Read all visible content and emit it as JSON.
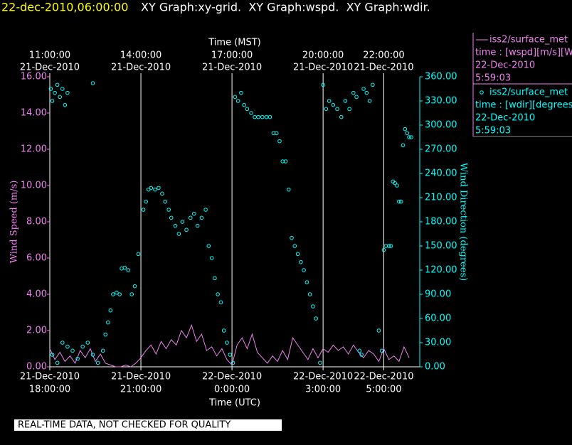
{
  "chart_data": {
    "type": "scatter",
    "timestamp": "22-dec-2010,06:00:00",
    "title": "XY Graph:xy-grid.  XY Graph:wspd.  XY Graph:wdir.",
    "xlabel": "Time (UTC)",
    "x2label": "Time (MST)",
    "ylabel": "Wind Speed (m/s)",
    "y2label": "Wind Direction (degrees)",
    "footer": "REAL-TIME DATA, NOT CHECKED FOR QUALITY",
    "grid": true,
    "xlim": [
      "2010-12-21T18:00",
      "2010-12-22T06:11"
    ],
    "xticks": [
      {
        "value": "2010-12-21T18:00",
        "label": [
          "21-Dec-2010",
          "18:00:00"
        ]
      },
      {
        "value": "2010-12-21T21:00",
        "label": [
          "21-Dec-2010",
          "21:00:00"
        ]
      },
      {
        "value": "2010-12-22T00:00",
        "label": [
          "22-Dec-2010",
          "0:00:00"
        ]
      },
      {
        "value": "2010-12-22T03:00",
        "label": [
          "22-Dec-2010",
          "3:00:00"
        ]
      },
      {
        "value": "2010-12-22T05:00",
        "label": [
          "22-Dec-2010",
          "5:00:00"
        ]
      }
    ],
    "x2lim": [
      "2010-12-21T11:00",
      "2010-12-21T23:11"
    ],
    "x2ticks": [
      {
        "value": "2010-12-21T11:00",
        "label": [
          "11:00:00",
          "21-Dec-2010"
        ]
      },
      {
        "value": "2010-12-21T14:00",
        "label": [
          "14:00:00",
          "21-Dec-2010"
        ]
      },
      {
        "value": "2010-12-21T17:00",
        "label": [
          "17:00:00",
          "21-Dec-2010"
        ]
      },
      {
        "value": "2010-12-21T20:00",
        "label": [
          "20:00:00",
          "21-Dec-2010"
        ]
      },
      {
        "value": "2010-12-21T22:00",
        "label": [
          "22:00:00",
          "21-Dec-2010"
        ]
      }
    ],
    "ylim": [
      0,
      16
    ],
    "yticks": [
      {
        "value": 0,
        "label": "0.00"
      },
      {
        "value": 2,
        "label": "2.00"
      },
      {
        "value": 4,
        "label": "4.00"
      },
      {
        "value": 6,
        "label": "6.00"
      },
      {
        "value": 8,
        "label": "8.00"
      },
      {
        "value": 10,
        "label": "10.00"
      },
      {
        "value": 12,
        "label": "12.00"
      },
      {
        "value": 14,
        "label": "14.00"
      },
      {
        "value": 16,
        "label": "16.00"
      }
    ],
    "y2lim": [
      0,
      360
    ],
    "y2ticks": [
      {
        "value": 0,
        "label": "0.00"
      },
      {
        "value": 30,
        "label": "30.00"
      },
      {
        "value": 60,
        "label": "60.00"
      },
      {
        "value": 90,
        "label": "90.00"
      },
      {
        "value": 120,
        "label": "120.00"
      },
      {
        "value": 150,
        "label": "150.00"
      },
      {
        "value": 180,
        "label": "180.00"
      },
      {
        "value": 210,
        "label": "210.00"
      },
      {
        "value": 240,
        "label": "240.00"
      },
      {
        "value": 270,
        "label": "270.00"
      },
      {
        "value": 300,
        "label": "300.00"
      },
      {
        "value": 330,
        "label": "330.00"
      },
      {
        "value": 360,
        "label": "360.00"
      }
    ],
    "series": [
      {
        "name": "iss2/surface_met",
        "color": "#ee82ee",
        "marker": "line",
        "detail": [
          "time : [wspd][m/s][Wind",
          "22-Dec-2010",
          "5:59:03"
        ],
        "x": [
          "2010-12-21T18:00",
          "2010-12-21T18:10",
          "2010-12-21T18:20",
          "2010-12-21T18:30",
          "2010-12-21T18:40",
          "2010-12-21T18:50",
          "2010-12-21T19:00",
          "2010-12-21T19:10",
          "2010-12-21T19:20",
          "2010-12-21T19:30",
          "2010-12-21T19:40",
          "2010-12-21T19:50",
          "2010-12-21T20:00",
          "2010-12-21T20:10",
          "2010-12-21T20:20",
          "2010-12-21T20:30",
          "2010-12-21T20:40",
          "2010-12-21T20:50",
          "2010-12-21T21:00",
          "2010-12-21T21:10",
          "2010-12-21T21:20",
          "2010-12-21T21:30",
          "2010-12-21T21:40",
          "2010-12-21T21:50",
          "2010-12-21T22:00",
          "2010-12-21T22:10",
          "2010-12-21T22:20",
          "2010-12-21T22:30",
          "2010-12-21T22:40",
          "2010-12-21T22:50",
          "2010-12-21T23:00",
          "2010-12-21T23:10",
          "2010-12-21T23:20",
          "2010-12-21T23:30",
          "2010-12-21T23:40",
          "2010-12-21T23:50",
          "2010-12-22T00:00",
          "2010-12-22T00:10",
          "2010-12-22T00:20",
          "2010-12-22T00:30",
          "2010-12-22T00:40",
          "2010-12-22T00:50",
          "2010-12-22T01:00",
          "2010-12-22T01:10",
          "2010-12-22T01:20",
          "2010-12-22T01:30",
          "2010-12-22T01:40",
          "2010-12-22T01:50",
          "2010-12-22T02:00",
          "2010-12-22T02:10",
          "2010-12-22T02:20",
          "2010-12-22T02:30",
          "2010-12-22T02:40",
          "2010-12-22T02:50",
          "2010-12-22T03:00",
          "2010-12-22T03:10",
          "2010-12-22T03:20",
          "2010-12-22T03:30",
          "2010-12-22T03:40",
          "2010-12-22T03:50",
          "2010-12-22T04:00",
          "2010-12-22T04:10",
          "2010-12-22T04:20",
          "2010-12-22T04:30",
          "2010-12-22T04:40",
          "2010-12-22T04:50",
          "2010-12-22T05:00",
          "2010-12-22T05:10",
          "2010-12-22T05:20",
          "2010-12-22T05:30",
          "2010-12-22T05:40",
          "2010-12-22T05:50"
        ],
        "values": [
          1.0,
          0.4,
          0.8,
          0.3,
          0.6,
          0.2,
          0.9,
          0.5,
          1.0,
          0.3,
          0.7,
          0.2,
          0.1,
          0.0,
          0.0,
          0.1,
          0.0,
          0.2,
          0.5,
          0.9,
          1.2,
          0.7,
          1.4,
          1.0,
          1.5,
          1.2,
          2.0,
          1.6,
          2.3,
          1.4,
          1.8,
          0.9,
          1.1,
          0.6,
          1.0,
          0.4,
          0.1,
          1.2,
          1.6,
          1.0,
          1.8,
          0.8,
          0.5,
          0.2,
          0.6,
          0.3,
          0.9,
          0.4,
          1.6,
          1.2,
          0.8,
          0.4,
          1.0,
          0.5,
          1.0,
          0.8,
          1.2,
          0.9,
          1.1,
          0.7,
          1.2,
          0.8,
          0.5,
          0.9,
          0.7,
          0.3,
          1.0,
          0.4,
          0.6,
          0.3,
          1.1,
          0.5
        ]
      },
      {
        "name": "iss2/surface_met",
        "color": "#00ffff",
        "marker": "circle",
        "axis": "y2",
        "detail": [
          "time : [wdir][degrees][W",
          "22-Dec-2010",
          "5:59:03"
        ],
        "x": [
          "2010-12-21T18:02",
          "2010-12-21T18:05",
          "2010-12-21T18:10",
          "2010-12-21T18:15",
          "2010-12-21T18:20",
          "2010-12-21T18:25",
          "2010-12-21T18:30",
          "2010-12-21T18:35",
          "2010-12-21T19:25",
          "2010-12-21T18:05",
          "2010-12-21T18:15",
          "2010-12-21T18:25",
          "2010-12-21T18:35",
          "2010-12-21T18:45",
          "2010-12-21T18:55",
          "2010-12-21T19:05",
          "2010-12-21T19:15",
          "2010-12-21T19:25",
          "2010-12-21T19:35",
          "2010-12-21T19:45",
          "2010-12-21T19:50",
          "2010-12-21T19:55",
          "2010-12-21T20:00",
          "2010-12-21T20:05",
          "2010-12-21T20:12",
          "2010-12-21T20:18",
          "2010-12-21T20:22",
          "2010-12-21T20:28",
          "2010-12-21T20:35",
          "2010-12-21T20:42",
          "2010-12-21T20:48",
          "2010-12-21T20:55",
          "2010-12-21T21:05",
          "2010-12-21T21:10",
          "2010-12-21T21:15",
          "2010-12-21T21:20",
          "2010-12-21T21:28",
          "2010-12-21T21:35",
          "2010-12-21T21:42",
          "2010-12-21T21:48",
          "2010-12-21T21:55",
          "2010-12-21T22:00",
          "2010-12-21T22:08",
          "2010-12-21T22:15",
          "2010-12-21T22:22",
          "2010-12-21T22:30",
          "2010-12-21T22:38",
          "2010-12-21T22:45",
          "2010-12-21T22:52",
          "2010-12-21T23:00",
          "2010-12-21T23:08",
          "2010-12-21T23:14",
          "2010-12-21T23:20",
          "2010-12-21T23:26",
          "2010-12-21T23:32",
          "2010-12-21T23:38",
          "2010-12-21T23:44",
          "2010-12-21T23:50",
          "2010-12-21T23:56",
          "2010-12-22T00:02",
          "2010-12-22T00:06",
          "2010-12-22T00:12",
          "2010-12-22T00:18",
          "2010-12-22T00:24",
          "2010-12-22T00:30",
          "2010-12-22T00:38",
          "2010-12-22T00:45",
          "2010-12-22T00:52",
          "2010-12-22T01:00",
          "2010-12-22T01:08",
          "2010-12-22T01:15",
          "2010-12-22T01:22",
          "2010-12-22T01:28",
          "2010-12-22T01:34",
          "2010-12-22T01:40",
          "2010-12-22T01:46",
          "2010-12-22T01:52",
          "2010-12-22T01:58",
          "2010-12-22T02:04",
          "2010-12-22T02:10",
          "2010-12-22T02:16",
          "2010-12-22T02:22",
          "2010-12-22T02:28",
          "2010-12-22T02:34",
          "2010-12-22T02:40",
          "2010-12-22T02:46",
          "2010-12-22T02:54",
          "2010-12-22T03:00",
          "2010-12-22T03:06",
          "2010-12-22T03:12",
          "2010-12-22T03:20",
          "2010-12-22T03:28",
          "2010-12-22T03:36",
          "2010-12-22T03:44",
          "2010-12-22T03:52",
          "2010-12-22T04:00",
          "2010-12-22T04:06",
          "2010-12-22T04:12",
          "2010-12-22T04:16",
          "2010-12-22T04:20",
          "2010-12-22T04:26",
          "2010-12-22T04:32",
          "2010-12-22T04:38",
          "2010-12-22T04:50",
          "2010-12-22T04:56",
          "2010-12-22T05:00",
          "2010-12-22T05:04",
          "2010-12-22T05:10",
          "2010-12-22T05:14",
          "2010-12-22T05:18",
          "2010-12-22T05:22",
          "2010-12-22T05:26",
          "2010-12-22T05:30",
          "2010-12-22T05:34",
          "2010-12-22T05:38",
          "2010-12-22T05:42",
          "2010-12-22T05:46",
          "2010-12-22T05:50",
          "2010-12-22T05:54"
        ],
        "values": [
          345,
          330,
          340,
          350,
          335,
          345,
          325,
          340,
          352,
          15,
          5,
          30,
          25,
          20,
          10,
          25,
          30,
          15,
          5,
          20,
          40,
          55,
          70,
          90,
          92,
          90,
          122,
          123,
          120,
          90,
          100,
          140,
          195,
          205,
          220,
          222,
          220,
          222,
          215,
          205,
          195,
          185,
          175,
          165,
          180,
          170,
          185,
          190,
          175,
          185,
          195,
          150,
          135,
          110,
          90,
          80,
          45,
          30,
          15,
          5,
          335,
          330,
          340,
          325,
          320,
          315,
          310,
          310,
          310,
          310,
          310,
          290,
          290,
          280,
          255,
          255,
          220,
          160,
          150,
          140,
          130,
          120,
          105,
          90,
          75,
          60,
          5,
          350,
          320,
          330,
          325,
          320,
          310,
          330,
          320,
          340,
          335,
          20,
          15,
          345,
          340,
          330,
          350,
          45,
          20,
          145,
          150,
          150,
          150,
          230,
          228,
          225,
          205,
          205,
          275,
          295,
          290,
          285,
          285
        ]
      }
    ]
  }
}
